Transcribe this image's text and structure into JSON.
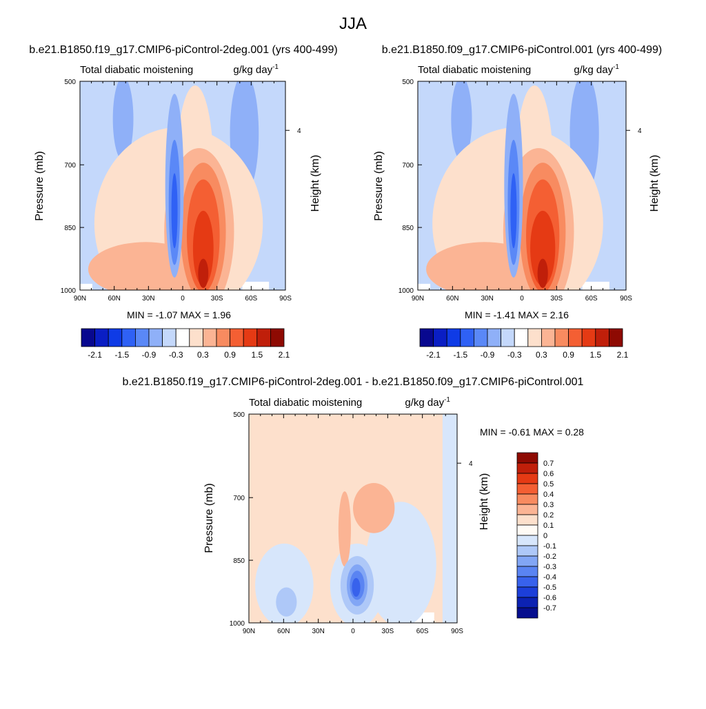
{
  "figure": {
    "title": "JJA"
  },
  "panels": [
    {
      "subtitle": "b.e21.B1850.f19_g17.CMIP6-piControl-2deg.001 (yrs 400-499)",
      "left_label": "Total diabatic moistening",
      "units": "g/kg day",
      "units_exp": "-1",
      "stats": "MIN =  -1.07  MAX =   1.96"
    },
    {
      "subtitle": "b.e21.B1850.f09_g17.CMIP6-piControl.001 (yrs 400-499)",
      "left_label": "Total diabatic moistening",
      "units": "g/kg day",
      "units_exp": "-1",
      "stats": "MIN =  -1.41  MAX =   2.16"
    },
    {
      "subtitle": "b.e21.B1850.f19_g17.CMIP6-piControl-2deg.001 - b.e21.B1850.f09_g17.CMIP6-piControl.001",
      "left_label": "Total diabatic moistening",
      "units": "g/kg day",
      "units_exp": "-1",
      "stats": "MIN =  -0.61  MAX =   0.28"
    }
  ],
  "axes": {
    "ylabel": "Pressure (mb)",
    "y2label": "Height (km)",
    "x_ticks": [
      "90N",
      "60N",
      "30N",
      "0",
      "30S",
      "60S",
      "90S"
    ],
    "y_ticks": [
      "500",
      "700",
      "850",
      "1000"
    ],
    "y2_ticks": [
      "4"
    ]
  },
  "colorbars": {
    "main": {
      "colors": [
        "#08088f",
        "#0a1ec4",
        "#0f3be6",
        "#2f61f5",
        "#5a88f7",
        "#8fb0f8",
        "#c4d8fb",
        "#ffffff",
        "#fde0cc",
        "#fbb494",
        "#f88b60",
        "#f45f33",
        "#e53a14",
        "#c01f0a",
        "#8e0a02"
      ],
      "labels": [
        "-2.1",
        "-1.5",
        "-0.9",
        "-0.3",
        "0.3",
        "0.9",
        "1.5",
        "2.1"
      ]
    },
    "diff": {
      "colors": [
        "#8e0a02",
        "#c01f0a",
        "#e53a14",
        "#f45f33",
        "#f88b60",
        "#fbb494",
        "#fde0cc",
        "#fffbf5",
        "#d7e6fb",
        "#aec8f8",
        "#82a6f5",
        "#5a84f2",
        "#3862ec",
        "#1c3fd9",
        "#0c22b2",
        "#060e8e"
      ],
      "labels": [
        "0.7",
        "0.6",
        "0.5",
        "0.4",
        "0.3",
        "0.2",
        "0.1",
        "0",
        "-0.1",
        "-0.2",
        "-0.3",
        "-0.4",
        "-0.5",
        "-0.6",
        "-0.7"
      ]
    }
  },
  "chart_data": [
    {
      "type": "heatmap",
      "title": "b.e21.B1850.f19_g17.CMIP6-piControl-2deg.001 (yrs 400-499)",
      "variable": "Total diabatic moistening",
      "units": "g/kg day-1",
      "x": [
        "90N",
        "60N",
        "30N",
        "0",
        "30S",
        "60S",
        "90S"
      ],
      "y": [
        500,
        700,
        850,
        1000
      ],
      "min": -1.07,
      "max": 1.96
    },
    {
      "type": "heatmap",
      "title": "b.e21.B1850.f09_g17.CMIP6-piControl.001 (yrs 400-499)",
      "variable": "Total diabatic moistening",
      "units": "g/kg day-1",
      "x": [
        "90N",
        "60N",
        "30N",
        "0",
        "30S",
        "60S",
        "90S"
      ],
      "y": [
        500,
        700,
        850,
        1000
      ],
      "min": -1.41,
      "max": 2.16
    },
    {
      "type": "heatmap",
      "title": "b.e21.B1850.f19_g17.CMIP6-piControl-2deg.001 - b.e21.B1850.f09_g17.CMIP6-piControl.001",
      "variable": "Total diabatic moistening",
      "units": "g/kg day-1",
      "x": [
        "90N",
        "60N",
        "30N",
        "0",
        "30S",
        "60S",
        "90S"
      ],
      "y": [
        500,
        700,
        850,
        1000
      ],
      "min": -0.61,
      "max": 0.28
    }
  ]
}
